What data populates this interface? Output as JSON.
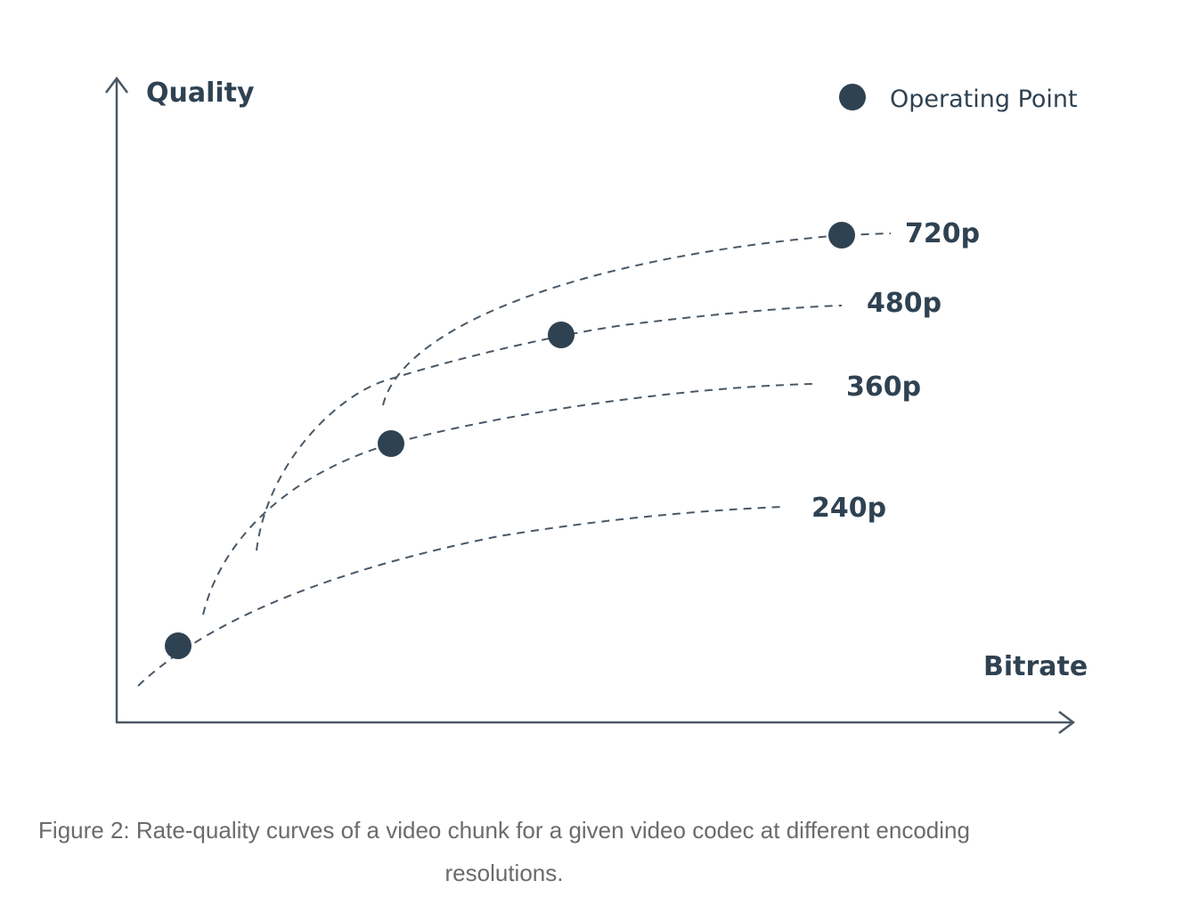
{
  "figure": {
    "y_axis_label": "Quality",
    "x_axis_label": "Bitrate",
    "legend": {
      "label": "Operating Point",
      "marker_color": "#2f4252"
    },
    "curves": [
      {
        "label": "720p"
      },
      {
        "label": "480p"
      },
      {
        "label": "360p"
      },
      {
        "label": "240p"
      }
    ],
    "colors": {
      "ink": "#2f4252",
      "curve": "#4a5866",
      "caption": "#6b6b6b"
    }
  },
  "caption": {
    "line1": "Figure 2: Rate-quality curves of a video chunk for a given video codec at different encoding",
    "line2": "resolutions."
  }
}
